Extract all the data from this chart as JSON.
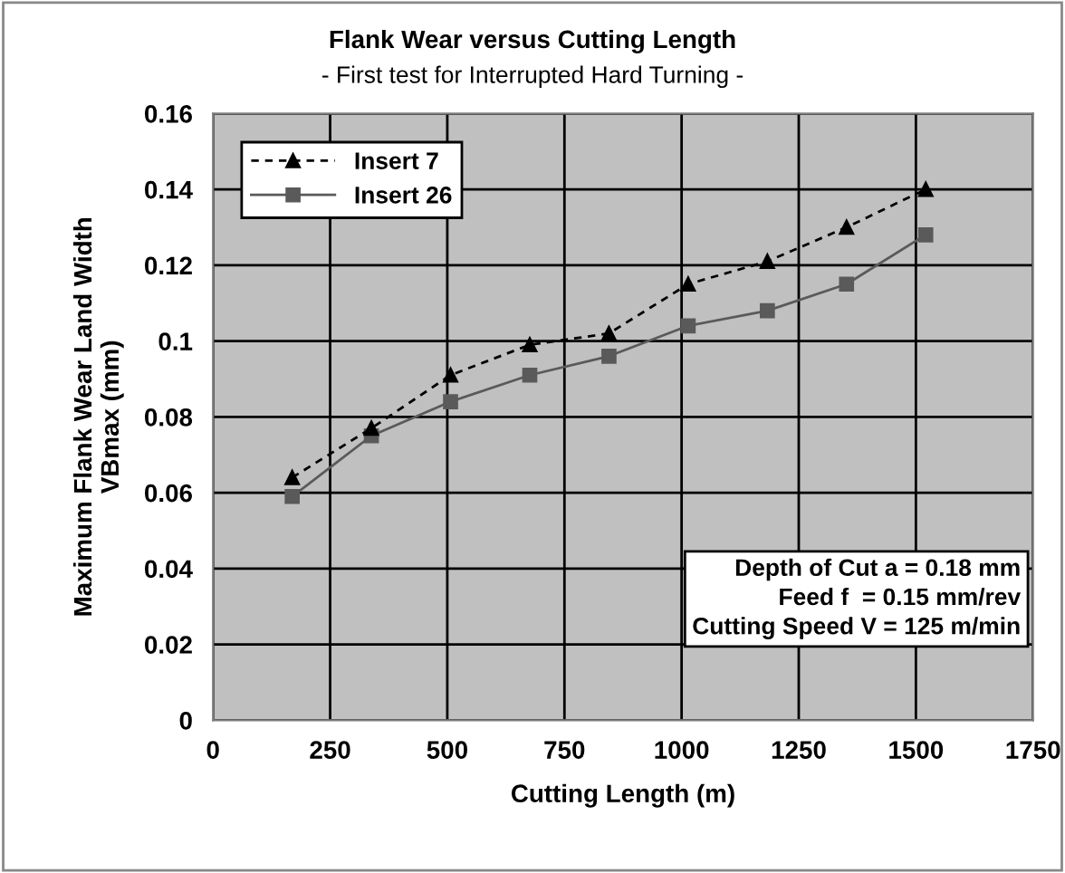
{
  "chart_data": {
    "type": "line",
    "title": "Flank Wear versus Cutting Length",
    "subtitle": "- First test for Interrupted Hard Turning -",
    "xlabel": "Cutting Length (m)",
    "ylabel": "Maximum Flank Wear Land Width\nVBmax (mm)",
    "x": [
      169,
      338,
      507,
      676,
      845,
      1014,
      1183,
      1352,
      1521
    ],
    "series": [
      {
        "name": "Insert 7",
        "color": "#000000",
        "marker": "triangle",
        "line_style": "dashed",
        "values": [
          0.064,
          0.077,
          0.091,
          0.099,
          0.102,
          0.115,
          0.121,
          0.13,
          0.14
        ]
      },
      {
        "name": "Insert 26",
        "color": "#5a5a5a",
        "marker": "square",
        "line_style": "solid",
        "values": [
          0.059,
          0.075,
          0.084,
          0.091,
          0.096,
          0.104,
          0.108,
          0.115,
          0.128
        ]
      }
    ],
    "xlim": [
      0,
      1750
    ],
    "xticks": [
      0,
      250,
      500,
      750,
      1000,
      1250,
      1500,
      1750
    ],
    "ylim": [
      0,
      0.16
    ],
    "yticks": [
      {
        "value": 0,
        "label": "0"
      },
      {
        "value": 0.02,
        "label": "0.02"
      },
      {
        "value": 0.04,
        "label": "0.04"
      },
      {
        "value": 0.06,
        "label": "0.06"
      },
      {
        "value": 0.08,
        "label": "0.08"
      },
      {
        "value": 0.1,
        "label": "0.1"
      },
      {
        "value": 0.12,
        "label": "0.12"
      },
      {
        "value": 0.14,
        "label": "0.14"
      },
      {
        "value": 0.16,
        "label": "0.16"
      }
    ],
    "grid": true,
    "legend": "top left",
    "annotations": [
      "Depth of Cut a = 0.18 mm\nFeed f  = 0.15 mm/rev\nCutting Speed V = 125 m/min"
    ]
  }
}
